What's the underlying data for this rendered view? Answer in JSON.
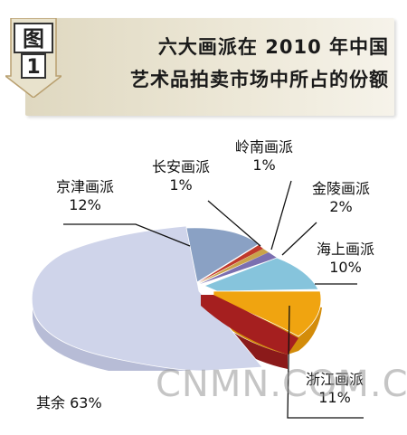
{
  "figure": {
    "tag_char": "图",
    "tag_num": "1",
    "title_line1": "六大画派在 2010 年中国",
    "title_line2": "艺术品拍卖市场中所占的份额"
  },
  "chart_data": {
    "type": "pie",
    "title": "六大画派在 2010 年中国艺术品拍卖市场中所占的份额",
    "slices": [
      {
        "name": "其余",
        "value": 63,
        "value_label": "63%",
        "color": "#cfd4ea"
      },
      {
        "name": "京津画派",
        "value": 12,
        "value_label": "12%",
        "color": "#8aa1c4"
      },
      {
        "name": "长安画派",
        "value": 1,
        "value_label": "1%",
        "color": "#c0392b"
      },
      {
        "name": "岭南画派",
        "value": 1,
        "value_label": "1%",
        "color": "#c9a34a"
      },
      {
        "name": "金陵画派",
        "value": 2,
        "value_label": "2%",
        "color": "#7b6fb0"
      },
      {
        "name": "海上画派",
        "value": 10,
        "value_label": "10%",
        "color": "#86c4dc"
      },
      {
        "name": "浙江画派",
        "value": 11,
        "value_label": "11%",
        "color": "#f0a410"
      }
    ],
    "extra_wedge": {
      "color": "#8b1a1a"
    }
  },
  "labels": {
    "qita": "其余 63%",
    "jingjin_name": "京津画派",
    "jingjin_pct": "12%",
    "changan_name": "长安画派",
    "changan_pct": "1%",
    "lingnan_name": "岭南画派",
    "lingnan_pct": "1%",
    "jinling_name": "金陵画派",
    "jinling_pct": "2%",
    "haishang_name": "海上画派",
    "haishang_pct": "10%",
    "zhejiang_name": "浙江画派",
    "zhejiang_pct": "11%"
  },
  "watermark": "CNMN.COM.C"
}
